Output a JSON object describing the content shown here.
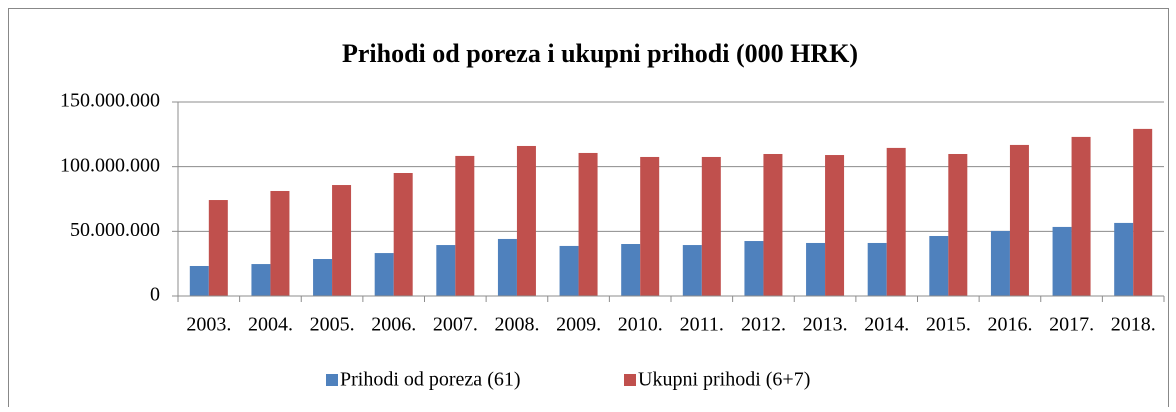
{
  "chart_data": {
    "type": "bar",
    "title": "Prihodi od poreza i ukupni prihodi (000 HRK)",
    "categories": [
      "2003.",
      "2004.",
      "2005.",
      "2006.",
      "2007.",
      "2008.",
      "2009.",
      "2010.",
      "2011.",
      "2012.",
      "2013.",
      "2014.",
      "2015.",
      "2016.",
      "2017.",
      "2018."
    ],
    "series": [
      {
        "name": "Prihodi od poreza (61)",
        "color": "#4f81bd",
        "values": [
          23200000,
          24700000,
          28600000,
          33200000,
          39400000,
          44100000,
          38700000,
          40200000,
          39400000,
          42500000,
          41000000,
          41000000,
          46400000,
          50300000,
          53400000,
          56500000
        ]
      },
      {
        "name": "Ukupni prihodi (6+7)",
        "color": "#c0504d",
        "values": [
          74200000,
          81200000,
          85800000,
          95100000,
          108300000,
          116000000,
          110600000,
          107500000,
          107500000,
          109800000,
          109000000,
          114500000,
          109800000,
          116800000,
          123000000,
          129200000
        ]
      }
    ],
    "ylim": [
      0,
      150000000
    ],
    "yticks": [
      0,
      {
        "value": 50000000,
        "label": "50.000.000"
      },
      {
        "value": 100000000,
        "label": "100.000.000"
      },
      {
        "value": 150000000,
        "label": "150.000.000"
      }
    ],
    "grid": true,
    "legend": "bottom"
  }
}
